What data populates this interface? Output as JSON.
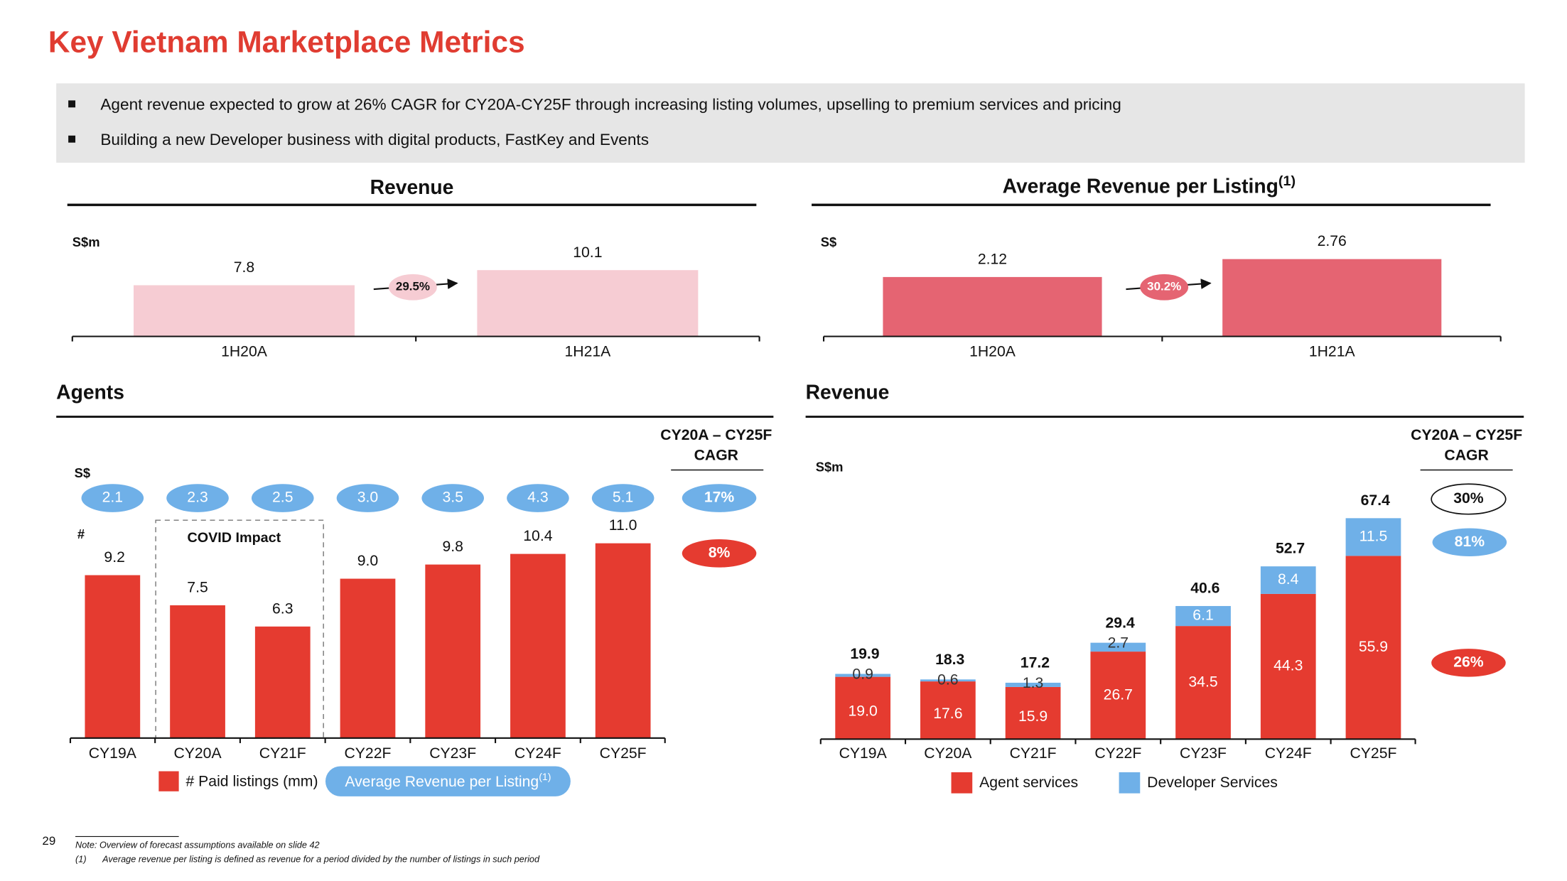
{
  "title": "Key Vietnam Marketplace Metrics",
  "bullets": [
    "Agent revenue expected to grow at 26% CAGR for CY20A-CY25F through increasing listing volumes, upselling to premium services and pricing",
    "Building a new Developer business with digital products, FastKey and Events"
  ],
  "page_number": 29,
  "notes": [
    "Note: Overview of forecast assumptions available on slide 42",
    {
      "marker": "(1)",
      "text": "Average revenue per listing is defined as revenue for a period divided by the number of listings in such period"
    }
  ],
  "chart_data": [
    {
      "type": "bar",
      "title": "Revenue",
      "unit": "S$m",
      "categories": [
        "1H20A",
        "1H21A"
      ],
      "values": [
        7.8,
        10.1
      ],
      "color": "#f6ccd3",
      "growth_label": "29.5%"
    },
    {
      "type": "bar",
      "title": "Average Revenue per Listing",
      "title_superscript": "(1)",
      "unit": "S$",
      "categories": [
        "1H20A",
        "1H21A"
      ],
      "values": [
        2.12,
        2.76
      ],
      "color": "#e56472",
      "growth_label": "30.2%"
    },
    {
      "type": "bar",
      "title": "Agents",
      "units": [
        "S$",
        "#"
      ],
      "annotation": "COVID Impact",
      "categories": [
        "CY19A",
        "CY20A",
        "CY21F",
        "CY22F",
        "CY23F",
        "CY24F",
        "CY25F"
      ],
      "series": [
        {
          "name": "# Paid listings (mm)",
          "color": "#e53b30",
          "values": [
            9.2,
            7.5,
            6.3,
            9.0,
            9.8,
            10.4,
            11.0
          ],
          "value_labels": [
            "9.2",
            "7.5",
            "6.3",
            "9.0",
            "9.8",
            "10.4",
            "11.0"
          ]
        },
        {
          "name": "Average Revenue per Listing",
          "name_superscript": "(1)",
          "color": "#6fb0e8",
          "values": [
            2.1,
            2.3,
            2.5,
            3.0,
            3.5,
            4.3,
            5.1
          ],
          "value_labels": [
            "2.1",
            "2.3",
            "2.5",
            "3.0",
            "3.5",
            "4.3",
            "5.1"
          ]
        }
      ],
      "cagr_header": [
        "CY20A – CY25F",
        "CAGR"
      ],
      "cagr_labels": [
        "17%",
        "8%"
      ]
    },
    {
      "type": "stacked_bar",
      "title": "Revenue",
      "unit": "S$m",
      "categories": [
        "CY19A",
        "CY20A",
        "CY21F",
        "CY22F",
        "CY23F",
        "CY24F",
        "CY25F"
      ],
      "series": [
        {
          "name": "Agent services",
          "color": "#e53b30",
          "values": [
            19.0,
            17.6,
            15.9,
            26.7,
            34.5,
            44.3,
            55.9
          ],
          "value_labels": [
            "19.0",
            "17.6",
            "15.9",
            "26.7",
            "34.5",
            "44.3",
            "55.9"
          ]
        },
        {
          "name": "Developer Services",
          "color": "#6fb0e8",
          "values": [
            0.9,
            0.6,
            1.3,
            2.7,
            6.1,
            8.4,
            11.5
          ]
        }
      ],
      "totals": [
        19.9,
        18.3,
        17.2,
        29.4,
        40.6,
        52.7,
        67.4
      ],
      "cagr_header": [
        "CY20A – CY25F",
        "CAGR"
      ],
      "cagr_labels": [
        "30%",
        "81%",
        "26%"
      ]
    }
  ]
}
